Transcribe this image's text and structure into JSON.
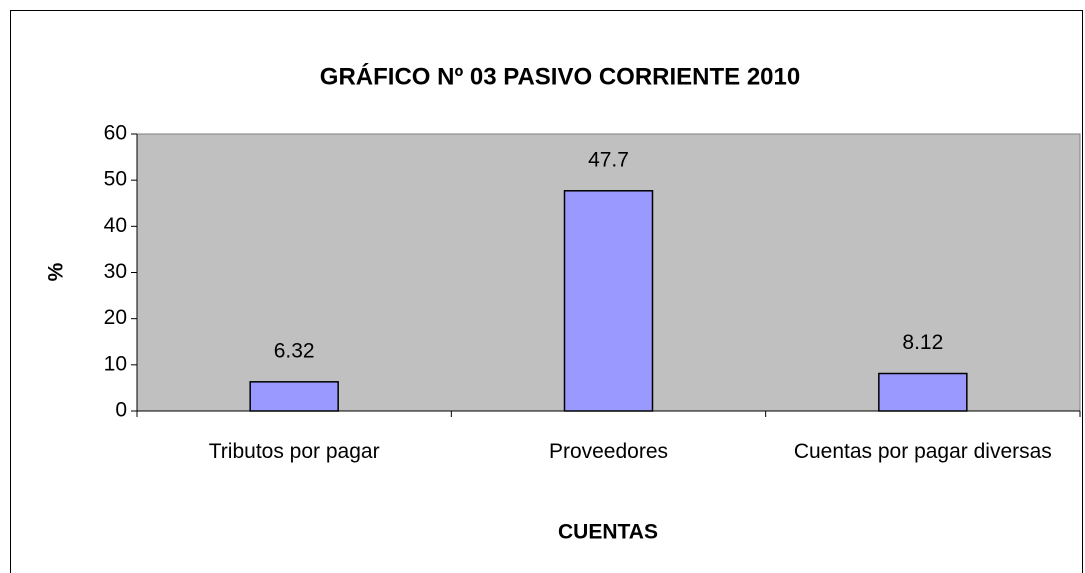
{
  "chart_data": {
    "type": "bar",
    "title": "GRÁFICO Nº 03 PASIVO CORRIENTE 2010",
    "x_label": "CUENTAS",
    "y_label": "%",
    "categories": [
      "Tributos por pagar",
      "Proveedores",
      "Cuentas por pagar diversas"
    ],
    "values": [
      6.32,
      47.7,
      8.12
    ],
    "color": "#9999ff",
    "plot_background": "#c0c0c0",
    "ylim": [
      0,
      60
    ],
    "yticks": [
      0,
      10,
      20,
      30,
      40,
      50,
      60
    ],
    "grid": false
  }
}
